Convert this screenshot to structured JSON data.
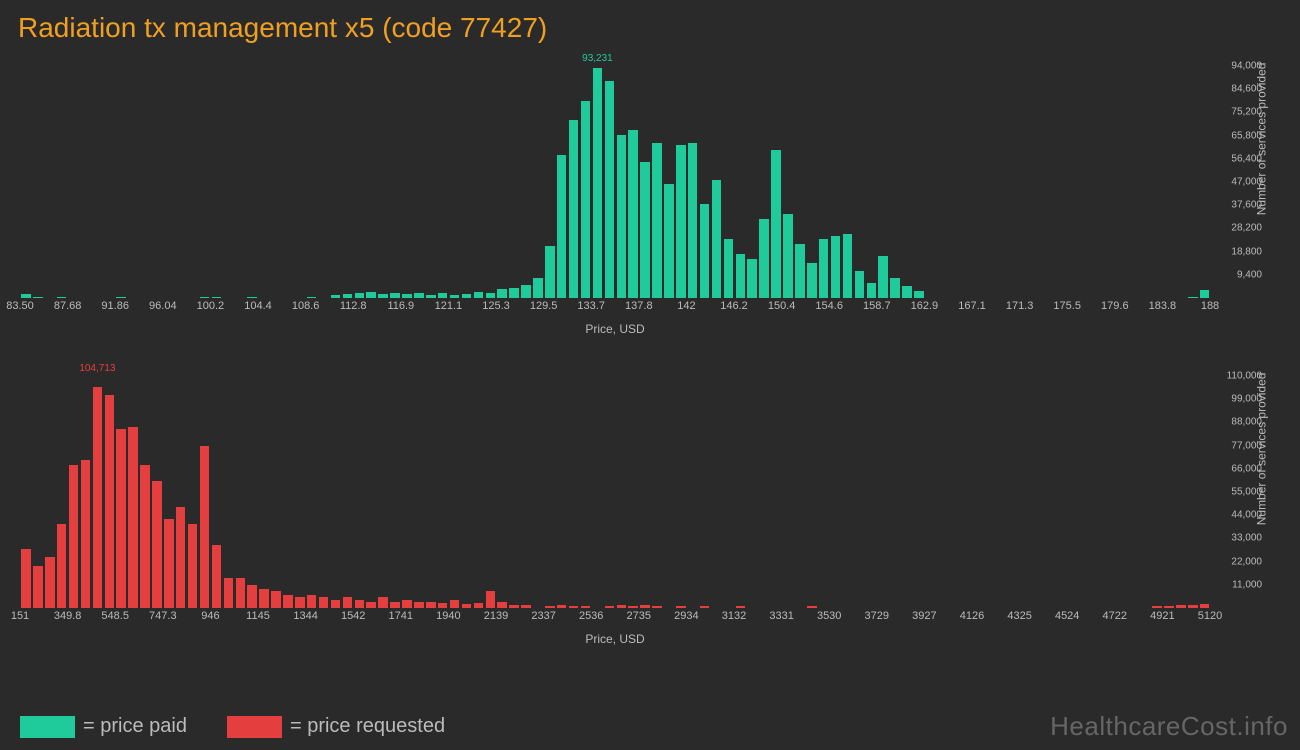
{
  "title": "Radiation tx management x5 (code 77427)",
  "colors": {
    "background": "#2a2a2a",
    "title": "#f0a020",
    "paid": "#1fcb9a",
    "requested": "#e53e3e",
    "axis_text": "#bbbbbb",
    "watermark": "#666666"
  },
  "watermark": "HealthcareCost.info",
  "legend": {
    "paid": "= price paid",
    "requested": "= price requested"
  },
  "chart_paid": {
    "type": "histogram",
    "bar_color": "#1fcb9a",
    "xlabel": "Price, USD",
    "ylabel": "Number of services provided",
    "title_fontsize": 28,
    "label_fontsize": 12,
    "tick_fontsize": 11,
    "bar_width": 0.8,
    "ylim": [
      0,
      94000
    ],
    "ytick_step": 9400,
    "yticks": [
      "9,400",
      "18,800",
      "28,200",
      "37,600",
      "47,000",
      "56,400",
      "65,800",
      "75,200",
      "84,600",
      "94,000"
    ],
    "xticks": [
      "83.50",
      "87.68",
      "91.86",
      "96.04",
      "100.2",
      "104.4",
      "108.6",
      "112.8",
      "116.9",
      "121.1",
      "125.3",
      "129.5",
      "133.7",
      "137.8",
      "142",
      "146.2",
      "150.4",
      "154.6",
      "158.7",
      "162.9",
      "167.1",
      "171.3",
      "175.5",
      "179.6",
      "183.8",
      "188"
    ],
    "peak_label": "93,231",
    "peak_index": 48,
    "values": [
      1500,
      600,
      0,
      400,
      0,
      0,
      0,
      0,
      400,
      0,
      0,
      0,
      0,
      0,
      0,
      600,
      400,
      0,
      0,
      600,
      0,
      0,
      0,
      0,
      400,
      0,
      1200,
      1800,
      2000,
      2400,
      1800,
      2200,
      1800,
      2000,
      1200,
      2000,
      1400,
      1800,
      2400,
      2200,
      3600,
      4000,
      5200,
      8000,
      21000,
      58000,
      72000,
      80000,
      93231,
      88000,
      66000,
      68000,
      55000,
      63000,
      46000,
      62000,
      63000,
      38000,
      48000,
      24000,
      18000,
      16000,
      32000,
      60000,
      34000,
      22000,
      14000,
      24000,
      25000,
      26000,
      11000,
      6000,
      17000,
      8000,
      5000,
      3000,
      0,
      0,
      0,
      0,
      0,
      0,
      0,
      0,
      0,
      0,
      0,
      0,
      0,
      0,
      0,
      0,
      0,
      0,
      0,
      0,
      0,
      0,
      600,
      3200
    ]
  },
  "chart_requested": {
    "type": "histogram",
    "bar_color": "#e53e3e",
    "xlabel": "Price, USD",
    "ylabel": "Number of services provided",
    "label_fontsize": 12,
    "tick_fontsize": 11,
    "bar_width": 0.8,
    "ylim": [
      0,
      110000
    ],
    "ytick_step": 11000,
    "yticks": [
      "11,000",
      "22,000",
      "33,000",
      "44,000",
      "55,000",
      "66,000",
      "77,000",
      "88,000",
      "99,000",
      "110,000"
    ],
    "xticks": [
      "151",
      "349.8",
      "548.5",
      "747.3",
      "946",
      "1145",
      "1344",
      "1542",
      "1741",
      "1940",
      "2139",
      "2337",
      "2536",
      "2735",
      "2934",
      "3132",
      "3331",
      "3530",
      "3729",
      "3927",
      "4126",
      "4325",
      "4524",
      "4722",
      "4921",
      "5120"
    ],
    "peak_label": "104,713",
    "peak_index": 6,
    "values": [
      28000,
      20000,
      24000,
      40000,
      68000,
      70000,
      104713,
      101000,
      85000,
      86000,
      68000,
      60000,
      42000,
      48000,
      40000,
      77000,
      30000,
      14000,
      14000,
      11000,
      9000,
      8000,
      6000,
      5000,
      6000,
      5000,
      4000,
      5000,
      4000,
      3000,
      5000,
      3000,
      4000,
      3000,
      3000,
      2500,
      4000,
      2000,
      2500,
      8000,
      3000,
      1500,
      1500,
      0,
      1000,
      1200,
      800,
      1000,
      0,
      800,
      1500,
      800,
      1200,
      1000,
      0,
      800,
      0,
      800,
      0,
      0,
      1000,
      0,
      0,
      0,
      0,
      0,
      800,
      0,
      0,
      0,
      0,
      0,
      0,
      0,
      0,
      0,
      0,
      0,
      0,
      0,
      0,
      0,
      0,
      0,
      0,
      0,
      0,
      0,
      0,
      0,
      0,
      0,
      0,
      0,
      0,
      800,
      800,
      1500,
      1200,
      2000
    ]
  }
}
